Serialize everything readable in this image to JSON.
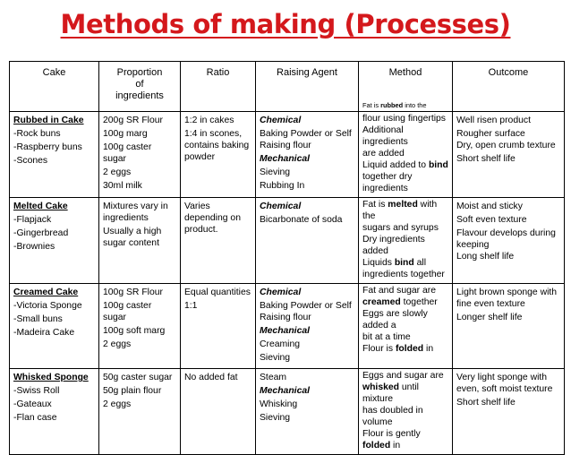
{
  "title": "Methods of making (Processes)",
  "headers": {
    "cake": "Cake",
    "proportion_l1": "Proportion",
    "proportion_l2": "of",
    "proportion_l3": "ingredients",
    "ratio": "Ratio",
    "raising_agent": "Raising Agent",
    "method": "Method",
    "outcome": "Outcome"
  },
  "header_method_note": "Fat is rubbed into the",
  "rows": [
    {
      "cake": {
        "name": "Rubbed in Cake",
        "items": [
          "-Rock buns",
          "-Raspberry buns",
          "-Scones"
        ]
      },
      "proportion": [
        "200g SR Flour",
        "100g marg",
        "100g caster sugar",
        "2 eggs",
        "30ml milk"
      ],
      "ratio": [
        "1:2 in cakes",
        "1:4 in scones, contains baking powder"
      ],
      "raising": {
        "label1": "Chemical",
        "text1": "Baking Powder or Self Raising flour",
        "label2": "Mechanical",
        "items2": [
          "Sieving",
          "Rubbing In"
        ]
      },
      "method": {
        "top": [
          "flour using fingertips",
          "Additional ingredients",
          "are added"
        ],
        "bind_pre": "Liquid added to ",
        "bind_word": "bind",
        "bottom": [
          "together dry",
          "ingredients"
        ]
      },
      "outcome": [
        "Well risen product",
        "Rougher surface",
        "Dry, open crumb texture",
        "Short shelf life"
      ]
    },
    {
      "cake": {
        "name": "Melted Cake",
        "items": [
          "-Flapjack",
          "-Gingerbread",
          "-Brownies"
        ]
      },
      "proportion": [
        "Mixtures vary in ingredients",
        "Usually a high sugar content"
      ],
      "ratio": [
        "Varies depending on product."
      ],
      "raising": {
        "label1": "Chemical",
        "text1": "Bicarbonate of soda"
      },
      "method": {
        "l1_pre": "Fat is ",
        "l1_word": "melted",
        "l1_post": " with the",
        "l2": "sugars and syrups",
        "l3": "Dry ingredients added",
        "l4_pre": "Liquids ",
        "l4_word": "bind",
        "l4_post": " all",
        "l5": "ingredients together"
      },
      "outcome": [
        "Moist and sticky",
        "Soft even texture",
        "Flavour develops during keeping",
        "Long shelf life"
      ]
    },
    {
      "cake": {
        "name": "Creamed Cake",
        "items": [
          "-Victoria Sponge",
          "-Small buns",
          "-Madeira Cake"
        ]
      },
      "proportion": [
        "100g SR Flour",
        "100g caster sugar",
        "100g soft marg",
        "2 eggs"
      ],
      "ratio": [
        "Equal quantities",
        "1:1"
      ],
      "raising": {
        "label1": "Chemical",
        "text1": "Baking Powder or Self Raising flour",
        "label2": "Mechanical",
        "items2": [
          "Creaming",
          "Sieving"
        ]
      },
      "method": {
        "l1": "Fat and sugar are",
        "l2_word": "creamed",
        "l2_post": " together",
        "l3": "Eggs are slowly added a",
        "l4": "bit at a time",
        "l5_pre": "Flour is ",
        "l5_word": "folded",
        "l5_post": " in"
      },
      "outcome": [
        "Light brown sponge with fine even texture",
        "Longer shelf life"
      ]
    },
    {
      "cake": {
        "name": "Whisked Sponge",
        "items": [
          "-Swiss Roll",
          "-Gateaux",
          "-Flan case"
        ]
      },
      "proportion": [
        "50g caster sugar",
        "50g plain flour",
        "2 eggs"
      ],
      "ratio": [
        "No added fat"
      ],
      "raising": {
        "text0": "Steam",
        "label2": "Mechanical",
        "items2": [
          "Whisking",
          "Sieving"
        ]
      },
      "method": {
        "l1": "Eggs and sugar are",
        "l2_word": "whisked",
        "l2_post": " until mixture",
        "l3": "has doubled in volume",
        "l4_pre": "Flour is gently ",
        "l4_word": "folded",
        "l4_post": " in"
      },
      "outcome": [
        "Very light sponge with even, soft moist texture",
        "Short shelf life"
      ]
    }
  ]
}
